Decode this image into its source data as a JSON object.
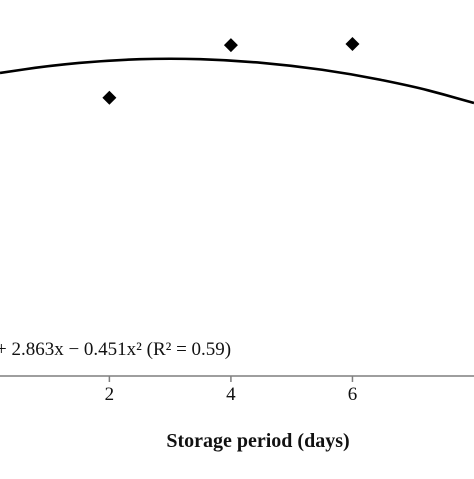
{
  "chart_data": {
    "type": "scatter",
    "xlabel": "Storage period (days)",
    "ylabel": "",
    "x_ticks": [
      "2",
      "4",
      "6"
    ],
    "x_tick_values": [
      2,
      4,
      6
    ],
    "xlim": [
      0.2,
      8.0
    ],
    "ylim": [
      0,
      1
    ],
    "series": [
      {
        "kind": "points",
        "marker": "diamond",
        "x": [
          2,
          4,
          6
        ],
        "y": [
          0.74,
          0.88,
          0.883
        ]
      },
      {
        "kind": "trendline",
        "x": [
          0.2,
          1,
          2,
          3,
          4,
          5,
          6,
          7,
          7.5,
          8.0
        ],
        "y": [
          0.806,
          0.825,
          0.84,
          0.845,
          0.84,
          0.826,
          0.803,
          0.77,
          0.749,
          0.726
        ]
      }
    ],
    "annotations": [
      {
        "text": "+ 2.863x − 0.451x² (R² = 0.59)"
      }
    ],
    "grid": false,
    "colors": {
      "points": "#000000",
      "trendline": "#000000",
      "axis": "#7f7f7f"
    }
  }
}
